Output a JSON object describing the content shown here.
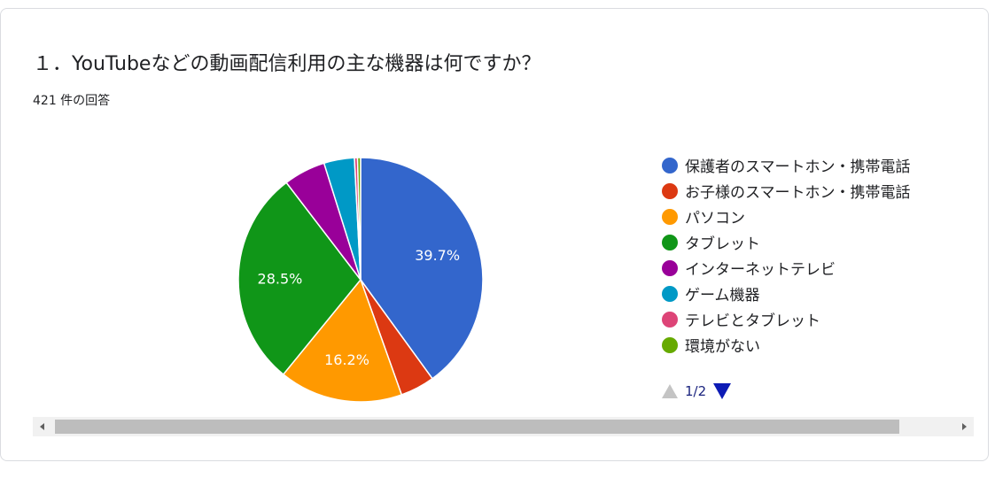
{
  "question": {
    "title": "１．YouTubeなどの動画配信利用の主な機器は何ですか？",
    "response_count": "421 件の回答"
  },
  "pager": {
    "text": "1/2"
  },
  "chart_data": {
    "type": "pie",
    "categories": [
      "保護者のスマートホン・携帯電話",
      "お子様のスマートホン・携帯電話",
      "パソコン",
      "タブレット",
      "インターネットテレビ",
      "ゲーム機器",
      "テレビとタブレット",
      "環境がない"
    ],
    "values": [
      39.7,
      4.5,
      16.2,
      28.5,
      5.5,
      4.0,
      0.4,
      0.4
    ],
    "data_labels": [
      "39.7%",
      "",
      "16.2%",
      "28.5%",
      "",
      "",
      "",
      ""
    ],
    "colors": [
      "#3366cc",
      "#dc3912",
      "#ff9900",
      "#109618",
      "#990099",
      "#0099c6",
      "#dd4477",
      "#66aa00"
    ],
    "legend_position": "right",
    "legend_page": "1/2"
  }
}
